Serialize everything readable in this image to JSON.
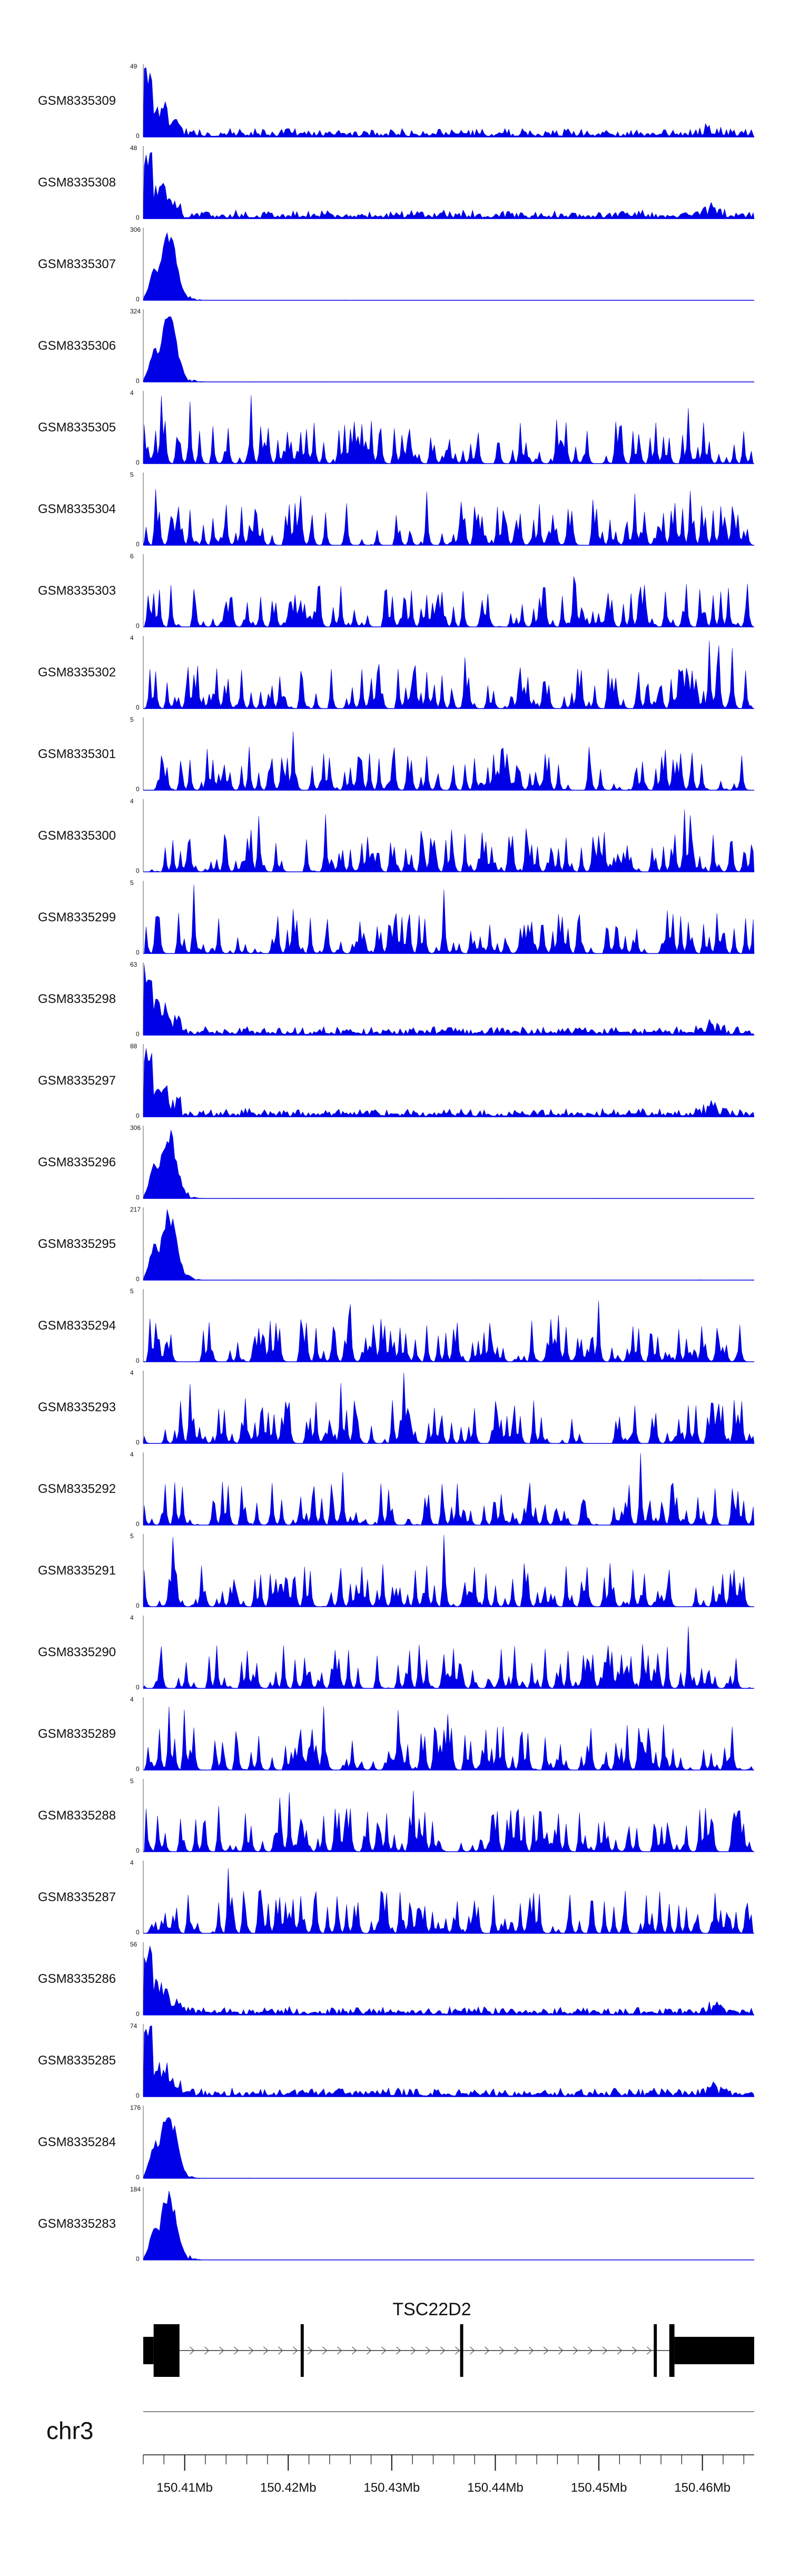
{
  "chart_data": {
    "type": "area",
    "chromosome": "chr3",
    "x_range": [
      150406000,
      150465000
    ],
    "x_ticks": [
      {
        "value": 150410000,
        "label": "150.41Mb"
      },
      {
        "value": 150420000,
        "label": "150.42Mb"
      },
      {
        "value": 150430000,
        "label": "150.43Mb"
      },
      {
        "value": 150440000,
        "label": "150.44Mb"
      },
      {
        "value": 150450000,
        "label": "150.45Mb"
      },
      {
        "value": 150460000,
        "label": "150.46Mb"
      }
    ],
    "gene": {
      "name": "TSC22D2",
      "strand": "+",
      "start": 150406000,
      "end": 150465000,
      "exons": [
        {
          "start": 150406000,
          "end": 150407000,
          "type": "utr"
        },
        {
          "start": 150407000,
          "end": 150409500,
          "type": "cds"
        },
        {
          "start": 150421200,
          "end": 150421500,
          "type": "cds"
        },
        {
          "start": 150436600,
          "end": 150436900,
          "type": "cds"
        },
        {
          "start": 150455300,
          "end": 150455600,
          "type": "cds"
        },
        {
          "start": 150456800,
          "end": 150457300,
          "type": "cds"
        },
        {
          "start": 150457300,
          "end": 150465000,
          "type": "utr"
        }
      ]
    },
    "series": [
      {
        "name": "GSM8335309",
        "ymax": 49,
        "profile": "promoter_broad"
      },
      {
        "name": "GSM8335308",
        "ymax": 48,
        "profile": "promoter_broad"
      },
      {
        "name": "GSM8335307",
        "ymax": 306,
        "profile": "promoter_peak"
      },
      {
        "name": "GSM8335306",
        "ymax": 324,
        "profile": "promoter_peak"
      },
      {
        "name": "GSM8335305",
        "ymax": 4,
        "profile": "noise"
      },
      {
        "name": "GSM8335304",
        "ymax": 5,
        "profile": "noise"
      },
      {
        "name": "GSM8335303",
        "ymax": 6,
        "profile": "noise"
      },
      {
        "name": "GSM8335302",
        "ymax": 4,
        "profile": "noise"
      },
      {
        "name": "GSM8335301",
        "ymax": 5,
        "profile": "noise"
      },
      {
        "name": "GSM8335300",
        "ymax": 4,
        "profile": "noise"
      },
      {
        "name": "GSM8335299",
        "ymax": 5,
        "profile": "noise"
      },
      {
        "name": "GSM8335298",
        "ymax": 63,
        "profile": "promoter_broad"
      },
      {
        "name": "GSM8335297",
        "ymax": 88,
        "profile": "promoter_broad"
      },
      {
        "name": "GSM8335296",
        "ymax": 306,
        "profile": "promoter_peak"
      },
      {
        "name": "GSM8335295",
        "ymax": 217,
        "profile": "promoter_peak"
      },
      {
        "name": "GSM8335294",
        "ymax": 5,
        "profile": "noise"
      },
      {
        "name": "GSM8335293",
        "ymax": 4,
        "profile": "noise"
      },
      {
        "name": "GSM8335292",
        "ymax": 4,
        "profile": "noise"
      },
      {
        "name": "GSM8335291",
        "ymax": 5,
        "profile": "noise"
      },
      {
        "name": "GSM8335290",
        "ymax": 4,
        "profile": "noise"
      },
      {
        "name": "GSM8335289",
        "ymax": 4,
        "profile": "noise"
      },
      {
        "name": "GSM8335288",
        "ymax": 5,
        "profile": "noise"
      },
      {
        "name": "GSM8335287",
        "ymax": 4,
        "profile": "noise"
      },
      {
        "name": "GSM8335286",
        "ymax": 56,
        "profile": "promoter_broad"
      },
      {
        "name": "GSM8335285",
        "ymax": 74,
        "profile": "promoter_broad"
      },
      {
        "name": "GSM8335284",
        "ymax": 176,
        "profile": "promoter_peak"
      },
      {
        "name": "GSM8335283",
        "ymax": 184,
        "profile": "promoter_peak"
      }
    ],
    "colors": {
      "signal": "#0000e6",
      "gene": "#000000",
      "axis": "#111111"
    }
  }
}
